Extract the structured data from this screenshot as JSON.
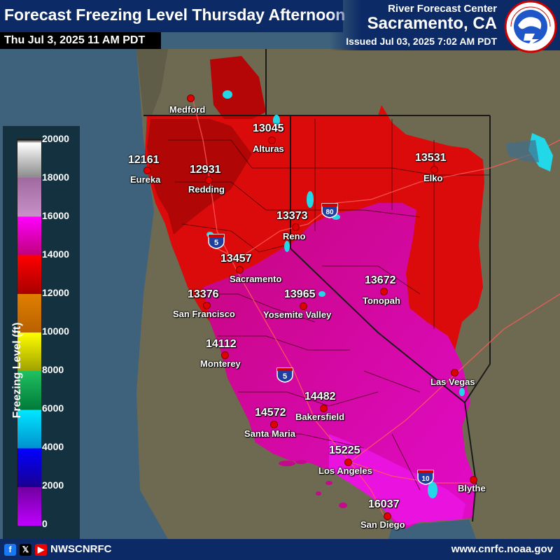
{
  "header": {
    "title": "Forecast Freezing Level Thursday Afternoon",
    "valid_time": "Thu Jul 3, 2025 11 AM PDT",
    "office_line1": "River Forecast Center",
    "office_line2": "Sacramento, CA",
    "issued": "Issued Jul 03, 2025 7:02 AM PDT",
    "logo_text": "NATIONAL WEATHER SERVICE"
  },
  "legend": {
    "title": "Freezing Level (ft)",
    "ticks": [
      "20000",
      "18000",
      "16000",
      "14000",
      "12000",
      "10000",
      "8000",
      "6000",
      "4000",
      "2000",
      "0"
    ],
    "colors": {
      "above_18000": "#ffffff",
      "16000_18000": "#c890c8",
      "14000_16000": "#ff00ff",
      "12000_14000": "#ff0000",
      "10000_12000": "#c06800",
      "8000_10000": "#ffff00",
      "6000_8000": "#20c060",
      "4000_6000": "#00e8ff",
      "2000_4000": "#0000ff",
      "0_2000": "#9000d0"
    }
  },
  "cities": [
    {
      "name": "Medford",
      "value": ""
    },
    {
      "name": "Alturas",
      "value": "13045"
    },
    {
      "name": "Eureka",
      "value": "12161"
    },
    {
      "name": "Redding",
      "value": "12931"
    },
    {
      "name": "Elko",
      "value": "13531"
    },
    {
      "name": "Reno",
      "value": "13373"
    },
    {
      "name": "Sacramento",
      "value": "13457"
    },
    {
      "name": "San Francisco",
      "value": "13376"
    },
    {
      "name": "Tonopah",
      "value": "13672"
    },
    {
      "name": "Yosemite Valley",
      "value": "13965"
    },
    {
      "name": "Monterey",
      "value": "14112"
    },
    {
      "name": "Las Vegas",
      "value": ""
    },
    {
      "name": "Bakersfield",
      "value": "14482"
    },
    {
      "name": "Santa Maria",
      "value": "14572"
    },
    {
      "name": "Los Angeles",
      "value": "15225"
    },
    {
      "name": "Blythe",
      "value": ""
    },
    {
      "name": "San Diego",
      "value": "16037"
    }
  ],
  "highways": [
    "80",
    "5",
    "5",
    "10"
  ],
  "footer": {
    "social_icons": [
      "facebook-icon",
      "x-icon",
      "youtube-icon"
    ],
    "handle": "NWSCNRFC",
    "website": "www.cnrfc.noaa.gov"
  }
}
